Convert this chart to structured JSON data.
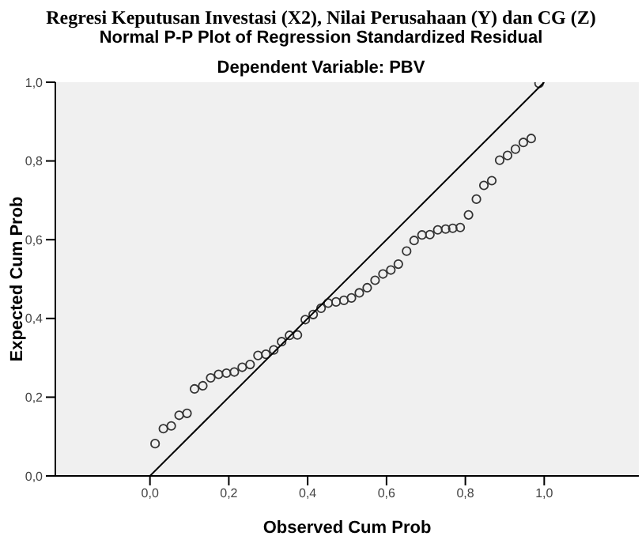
{
  "chart_data": {
    "type": "scatter",
    "title": "Regresi Keputusan Investasi (X2), Nilai Perusahaan (Y) dan CG (Z)",
    "subtitle": "Normal P-P Plot of Regression Standardized Residual",
    "annotations": [
      "Dependent Variable: PBV"
    ],
    "xlabel": "Observed Cum Prob",
    "ylabel": "Expected Cum Prob",
    "xlim": [
      -0.24,
      1.24
    ],
    "ylim": [
      0,
      1
    ],
    "xticks": [
      {
        "value": 0,
        "label": "0,0"
      },
      {
        "value": 0.2,
        "label": "0,2"
      },
      {
        "value": 0.4,
        "label": "0,4"
      },
      {
        "value": 0.6,
        "label": "0,6"
      },
      {
        "value": 0.8,
        "label": "0,8"
      },
      {
        "value": 1,
        "label": "1,0"
      }
    ],
    "yticks": [
      {
        "value": 0,
        "label": "0,0"
      },
      {
        "value": 0.2,
        "label": "0,2"
      },
      {
        "value": 0.4,
        "label": "0,4"
      },
      {
        "value": 0.6,
        "label": "0,6"
      },
      {
        "value": 0.8,
        "label": "0,8"
      },
      {
        "value": 1,
        "label": "1,0"
      }
    ],
    "grid": false,
    "series": [
      {
        "color": "#333333",
        "marker": "circle",
        "x": [
          0.013,
          0.034,
          0.054,
          0.074,
          0.094,
          0.113,
          0.134,
          0.154,
          0.174,
          0.194,
          0.214,
          0.234,
          0.254,
          0.274,
          0.294,
          0.314,
          0.334,
          0.354,
          0.374,
          0.394,
          0.414,
          0.434,
          0.452,
          0.472,
          0.492,
          0.511,
          0.531,
          0.551,
          0.571,
          0.591,
          0.611,
          0.63,
          0.651,
          0.67,
          0.69,
          0.71,
          0.73,
          0.75,
          0.768,
          0.787,
          0.808,
          0.828,
          0.847,
          0.867,
          0.887,
          0.907,
          0.927,
          0.947,
          0.967,
          0.987
        ],
        "values": [
          0.082,
          0.12,
          0.127,
          0.154,
          0.159,
          0.221,
          0.229,
          0.249,
          0.258,
          0.261,
          0.264,
          0.276,
          0.283,
          0.306,
          0.309,
          0.32,
          0.341,
          0.357,
          0.358,
          0.397,
          0.41,
          0.426,
          0.439,
          0.442,
          0.446,
          0.452,
          0.465,
          0.478,
          0.497,
          0.513,
          0.523,
          0.538,
          0.571,
          0.598,
          0.612,
          0.613,
          0.625,
          0.627,
          0.629,
          0.631,
          0.663,
          0.703,
          0.738,
          0.75,
          0.802,
          0.814,
          0.83,
          0.847,
          0.857,
          0.997
        ]
      },
      {
        "type": "line",
        "color": "#000000",
        "marker": "none",
        "x": [
          0,
          1
        ],
        "values": [
          0,
          1
        ]
      }
    ]
  }
}
